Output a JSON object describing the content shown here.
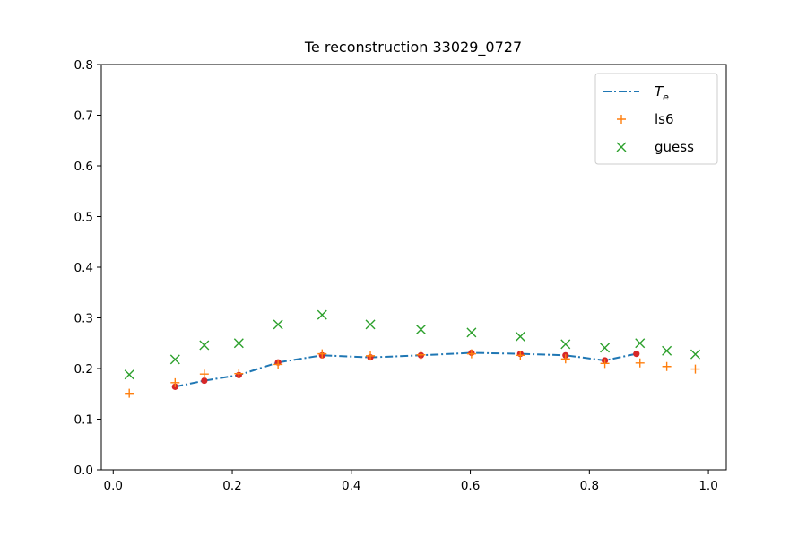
{
  "chart_data": {
    "type": "scatter",
    "title": "Te reconstruction 33029_0727",
    "xlabel": "",
    "ylabel": "",
    "xlim": [
      -0.02,
      1.03
    ],
    "ylim": [
      0.0,
      0.8
    ],
    "x_ticks": [
      "0.0",
      "0.2",
      "0.4",
      "0.6",
      "0.8",
      "1.0"
    ],
    "x_tick_values": [
      0.0,
      0.2,
      0.4,
      0.6,
      0.8,
      1.0
    ],
    "y_ticks": [
      "0.0",
      "0.1",
      "0.2",
      "0.3",
      "0.4",
      "0.5",
      "0.6",
      "0.7",
      "0.8"
    ],
    "y_tick_values": [
      0.0,
      0.1,
      0.2,
      0.3,
      0.4,
      0.5,
      0.6,
      0.7,
      0.8
    ],
    "grid": false,
    "legend_position": "top-right",
    "series": [
      {
        "name": "T",
        "name_subscript": "e",
        "style": "dashdot-line",
        "color": "#1f77b4",
        "marker_color": "#d62728",
        "x": [
          0.104,
          0.153,
          0.211,
          0.277,
          0.351,
          0.432,
          0.517,
          0.602,
          0.684,
          0.76,
          0.826,
          0.879
        ],
        "y": [
          0.164,
          0.176,
          0.187,
          0.212,
          0.226,
          0.222,
          0.226,
          0.231,
          0.229,
          0.226,
          0.216,
          0.229
        ]
      },
      {
        "name": "ls6",
        "style": "plus",
        "color": "#ff7f0e",
        "x": [
          0.027,
          0.104,
          0.153,
          0.211,
          0.277,
          0.351,
          0.432,
          0.517,
          0.602,
          0.684,
          0.76,
          0.826,
          0.885,
          0.93,
          0.978
        ],
        "y": [
          0.151,
          0.172,
          0.189,
          0.19,
          0.208,
          0.229,
          0.225,
          0.227,
          0.229,
          0.226,
          0.219,
          0.21,
          0.211,
          0.204,
          0.199
        ]
      },
      {
        "name": "guess",
        "style": "x",
        "color": "#2ca02c",
        "x": [
          0.027,
          0.104,
          0.153,
          0.211,
          0.277,
          0.351,
          0.432,
          0.517,
          0.602,
          0.684,
          0.76,
          0.826,
          0.885,
          0.93,
          0.978
        ],
        "y": [
          0.188,
          0.218,
          0.246,
          0.25,
          0.287,
          0.306,
          0.287,
          0.277,
          0.271,
          0.263,
          0.248,
          0.241,
          0.25,
          0.235,
          0.228
        ]
      }
    ]
  }
}
